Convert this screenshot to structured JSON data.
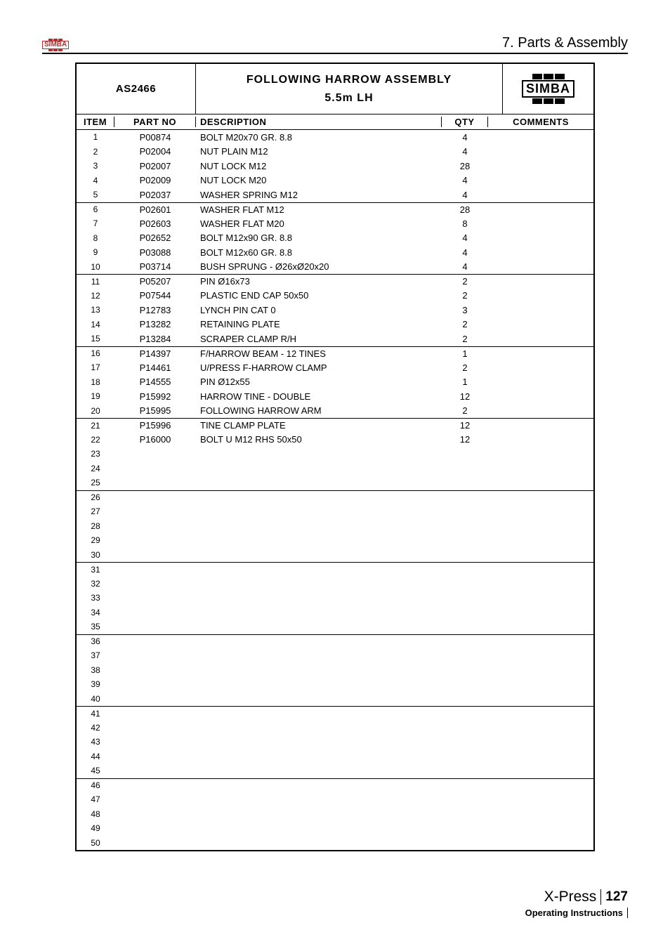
{
  "header": {
    "logo_text": "SIMBA",
    "section_title": "7. Parts & Assembly"
  },
  "table": {
    "assembly_code": "AS2466",
    "assembly_title_line1": "FOLLOWING HARROW ASSEMBLY",
    "assembly_title_line2": "5.5m LH",
    "brand_logo": "SIMBA",
    "columns": {
      "item": "ITEM",
      "part_no": "PART NO",
      "description": "DESCRIPTION",
      "qty": "QTY",
      "comments": "COMMENTS"
    },
    "separator_after_rows": [
      5,
      10,
      15,
      20,
      25,
      30,
      35,
      40,
      45
    ],
    "total_rows": 50,
    "rows": [
      {
        "item": 1,
        "part_no": "P00874",
        "description": "BOLT M20x70 GR. 8.8",
        "qty": "4",
        "comments": ""
      },
      {
        "item": 2,
        "part_no": "P02004",
        "description": "NUT PLAIN M12",
        "qty": "4",
        "comments": ""
      },
      {
        "item": 3,
        "part_no": "P02007",
        "description": "NUT LOCK M12",
        "qty": "28",
        "comments": ""
      },
      {
        "item": 4,
        "part_no": "P02009",
        "description": "NUT LOCK M20",
        "qty": "4",
        "comments": ""
      },
      {
        "item": 5,
        "part_no": "P02037",
        "description": "WASHER SPRING M12",
        "qty": "4",
        "comments": ""
      },
      {
        "item": 6,
        "part_no": "P02601",
        "description": "WASHER FLAT M12",
        "qty": "28",
        "comments": ""
      },
      {
        "item": 7,
        "part_no": "P02603",
        "description": "WASHER FLAT M20",
        "qty": "8",
        "comments": ""
      },
      {
        "item": 8,
        "part_no": "P02652",
        "description": "BOLT M12x90 GR. 8.8",
        "qty": "4",
        "comments": ""
      },
      {
        "item": 9,
        "part_no": "P03088",
        "description": "BOLT M12x60 GR. 8.8",
        "qty": "4",
        "comments": ""
      },
      {
        "item": 10,
        "part_no": "P03714",
        "description": "BUSH SPRUNG - Ø26xØ20x20",
        "qty": "4",
        "comments": ""
      },
      {
        "item": 11,
        "part_no": "P05207",
        "description": "PIN Ø16x73",
        "qty": "2",
        "comments": ""
      },
      {
        "item": 12,
        "part_no": "P07544",
        "description": "PLASTIC END CAP 50x50",
        "qty": "2",
        "comments": ""
      },
      {
        "item": 13,
        "part_no": "P12783",
        "description": "LYNCH PIN CAT 0",
        "qty": "3",
        "comments": ""
      },
      {
        "item": 14,
        "part_no": "P13282",
        "description": "RETAINING PLATE",
        "qty": "2",
        "comments": ""
      },
      {
        "item": 15,
        "part_no": "P13284",
        "description": "SCRAPER CLAMP R/H",
        "qty": "2",
        "comments": ""
      },
      {
        "item": 16,
        "part_no": "P14397",
        "description": "F/HARROW BEAM - 12 TINES",
        "qty": "1",
        "comments": ""
      },
      {
        "item": 17,
        "part_no": "P14461",
        "description": "U/PRESS F-HARROW CLAMP",
        "qty": "2",
        "comments": ""
      },
      {
        "item": 18,
        "part_no": "P14555",
        "description": "PIN Ø12x55",
        "qty": "1",
        "comments": ""
      },
      {
        "item": 19,
        "part_no": "P15992",
        "description": "HARROW TINE - DOUBLE",
        "qty": "12",
        "comments": ""
      },
      {
        "item": 20,
        "part_no": "P15995",
        "description": "FOLLOWING HARROW ARM",
        "qty": "2",
        "comments": ""
      },
      {
        "item": 21,
        "part_no": "P15996",
        "description": "TINE CLAMP PLATE",
        "qty": "12",
        "comments": ""
      },
      {
        "item": 22,
        "part_no": "P16000",
        "description": "BOLT U M12 RHS 50x50",
        "qty": "12",
        "comments": ""
      }
    ]
  },
  "footer": {
    "product": "X-Press",
    "page_number": "127",
    "subtitle": "Operating Instructions"
  },
  "colors": {
    "text": "#000000",
    "logo_red": "#b03030",
    "background": "#ffffff"
  },
  "typography": {
    "body_fontsize": 13,
    "header_section_fontsize": 20,
    "title_fontsize": 16,
    "footer_product_fontsize": 21
  }
}
